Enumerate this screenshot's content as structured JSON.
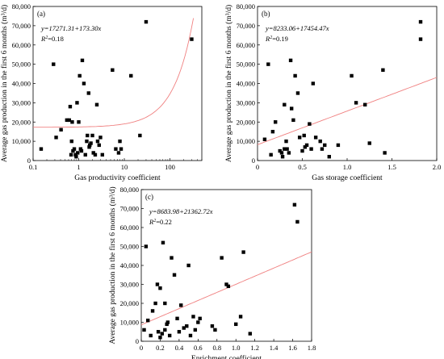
{
  "chart_data": [
    {
      "type": "scatter",
      "panel_label": "(a)",
      "xlabel": "Gas productivity coefficient",
      "ylabel": "Average gas production in the first 6 months (m³/d)",
      "xscale": "log",
      "xlim": [
        0.1,
        500
      ],
      "ylim": [
        0,
        80000
      ],
      "xticks": [
        0.1,
        1,
        10,
        100
      ],
      "xtick_labels": [
        "0.1",
        "1",
        "10",
        "100"
      ],
      "yticks": [
        0,
        10000,
        20000,
        30000,
        40000,
        50000,
        60000,
        70000,
        80000
      ],
      "ytick_labels": [
        "0",
        "10,000",
        "20,000",
        "30,000",
        "40,000",
        "50,000",
        "60,000",
        "70,000",
        "80,000"
      ],
      "equation": "y=17271.31+173.30x",
      "r2_prefix": "R",
      "r2_value": "=0.18",
      "fit": {
        "intercept": 17271.31,
        "slope": 173.3
      },
      "x": [
        0.15,
        0.28,
        0.32,
        0.41,
        0.55,
        0.62,
        0.65,
        0.68,
        0.7,
        0.72,
        0.75,
        0.8,
        0.85,
        0.88,
        0.92,
        0.95,
        1.0,
        1.05,
        1.1,
        1.15,
        1.2,
        1.3,
        1.4,
        1.5,
        1.55,
        1.65,
        1.7,
        1.75,
        1.85,
        2.0,
        2.1,
        2.3,
        2.5,
        2.6,
        2.8,
        3.0,
        3.3,
        5.5,
        6.5,
        7.5,
        8.0,
        8.5,
        14.0,
        22.0,
        30.0,
        300.0
      ],
      "y": [
        6000,
        50000,
        12000,
        16000,
        21000,
        21000,
        28000,
        3000,
        10000,
        20000,
        5000,
        6000,
        3000,
        2000,
        30000,
        4000,
        20000,
        44000,
        6000,
        5000,
        52000,
        40000,
        3000,
        10000,
        13000,
        35000,
        7000,
        8000,
        9000,
        13000,
        4000,
        3000,
        29000,
        10000,
        8000,
        12000,
        3000,
        47000,
        6000,
        4000,
        10000,
        6000,
        44000,
        13000,
        72000,
        63000
      ]
    },
    {
      "type": "scatter",
      "panel_label": "(b)",
      "xlabel": "Gas storage coefficient",
      "ylabel": "Average gas production in the first 6 months (m³/d)",
      "xscale": "linear",
      "xlim": [
        0,
        2.0
      ],
      "ylim": [
        0,
        80000
      ],
      "xticks": [
        0,
        0.5,
        1.0,
        1.5,
        2.0
      ],
      "xtick_labels": [
        "0",
        "0.5",
        "1.0",
        "1.5",
        "2.0"
      ],
      "yticks": [
        0,
        10000,
        20000,
        30000,
        40000,
        50000,
        60000,
        70000,
        80000
      ],
      "ytick_labels": [
        "0",
        "10,000",
        "20,000",
        "30,000",
        "40,000",
        "50,000",
        "60,000",
        "70,000",
        "80,000"
      ],
      "equation": "y=8233.06+17454.47x",
      "r2_prefix": "R",
      "r2_value": "=0.19",
      "fit": {
        "intercept": 8233.06,
        "slope": 17454.47
      },
      "x": [
        0.08,
        0.12,
        0.15,
        0.17,
        0.2,
        0.25,
        0.27,
        0.28,
        0.3,
        0.3,
        0.32,
        0.33,
        0.35,
        0.37,
        0.38,
        0.4,
        0.42,
        0.45,
        0.47,
        0.5,
        0.52,
        0.53,
        0.55,
        0.58,
        0.6,
        0.62,
        0.65,
        0.7,
        0.72,
        0.75,
        0.8,
        0.9,
        1.05,
        1.1,
        1.2,
        1.25,
        1.4,
        1.42,
        1.82,
        1.82
      ],
      "y": [
        11000,
        50000,
        3000,
        15000,
        20000,
        5000,
        4000,
        2000,
        6000,
        29000,
        10000,
        6000,
        4000,
        52000,
        27000,
        21000,
        44000,
        35000,
        12000,
        5000,
        13000,
        7000,
        8000,
        19000,
        6000,
        40000,
        12000,
        10000,
        6000,
        8000,
        2000,
        8000,
        44000,
        30000,
        29000,
        9000,
        47000,
        4000,
        72000,
        63000
      ]
    },
    {
      "type": "scatter",
      "panel_label": "(c)",
      "xlabel": "Enrichment coefficient",
      "ylabel": "Average gas production in the first 6 months (m³/d)",
      "xscale": "linear",
      "xlim": [
        0,
        1.8
      ],
      "ylim": [
        0,
        80000
      ],
      "xticks": [
        0,
        0.2,
        0.4,
        0.6,
        0.8,
        1.0,
        1.2,
        1.4,
        1.6,
        1.8
      ],
      "xtick_labels": [
        "0",
        "0.2",
        "0.4",
        "0.6",
        "0.8",
        "1.0",
        "1.2",
        "1.4",
        "1.6",
        "1.8"
      ],
      "yticks": [
        0,
        10000,
        20000,
        30000,
        40000,
        50000,
        60000,
        70000,
        80000
      ],
      "ytick_labels": [
        "0",
        "10,000",
        "20,000",
        "30,000",
        "40,000",
        "50,000",
        "60,000",
        "70,000",
        "80,000"
      ],
      "equation": "y=8683.98+21362.72x",
      "r2_prefix": "R",
      "r2_value": "=0.22",
      "fit": {
        "intercept": 8683.98,
        "slope": 21362.72
      },
      "x": [
        0.03,
        0.05,
        0.07,
        0.1,
        0.12,
        0.15,
        0.17,
        0.18,
        0.2,
        0.2,
        0.22,
        0.23,
        0.25,
        0.25,
        0.27,
        0.28,
        0.3,
        0.32,
        0.35,
        0.38,
        0.4,
        0.42,
        0.45,
        0.48,
        0.5,
        0.52,
        0.55,
        0.57,
        0.6,
        0.62,
        0.75,
        0.78,
        0.85,
        0.9,
        0.92,
        1.0,
        1.05,
        1.08,
        1.15,
        1.62,
        1.65
      ],
      "y": [
        6000,
        50000,
        11000,
        3000,
        16000,
        20000,
        30000,
        5000,
        2000,
        28000,
        4000,
        52000,
        6000,
        20000,
        9000,
        10000,
        3000,
        44000,
        35000,
        12000,
        5000,
        19000,
        7000,
        8000,
        40000,
        3000,
        13000,
        6000,
        10000,
        12000,
        8000,
        6000,
        44000,
        30000,
        29000,
        9000,
        13000,
        47000,
        4000,
        72000,
        63000
      ]
    }
  ]
}
